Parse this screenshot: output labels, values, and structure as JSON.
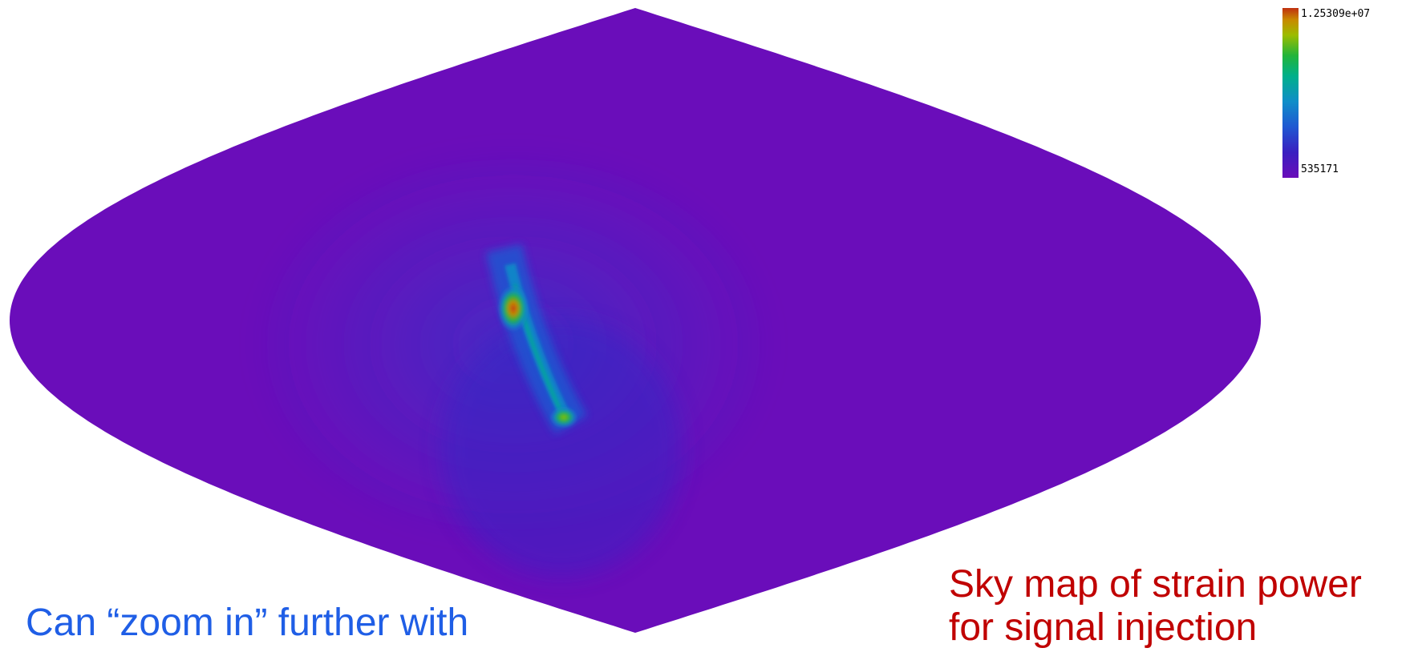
{
  "colors": {
    "background": "#ffffff",
    "left_caption": "#1f5ee6",
    "right_caption": "#c00000"
  },
  "chart_data": {
    "type": "heatmap",
    "projection": "sinusoidal (equal-area sky map)",
    "colormap": [
      "#6a0dba",
      "#3a1fc0",
      "#1f58d2",
      "#0f8ec8",
      "#00b08a",
      "#22b43a",
      "#9cbc00",
      "#c88a00",
      "#c03010"
    ],
    "colorbar": {
      "max_label": "1.25309e+07",
      "min_label": "535171",
      "max": 12530900,
      "min": 535171,
      "placement": "top-right"
    },
    "background_level": 0.0,
    "features": [
      {
        "kind": "hotspot",
        "level": 1.0,
        "description": "main peak"
      },
      {
        "kind": "hotspot",
        "level": 0.62,
        "description": "secondary peak"
      },
      {
        "kind": "arc",
        "level": 0.35,
        "description": "connecting ridge"
      },
      {
        "kind": "diffuse",
        "level": 0.12,
        "description": "halo"
      }
    ],
    "title": ""
  },
  "captions": {
    "left": {
      "lines": [
        "Can “zoom in” further with"
      ]
    },
    "right": {
      "lines": [
        "Sky map of strain power",
        "for signal injection"
      ]
    }
  }
}
